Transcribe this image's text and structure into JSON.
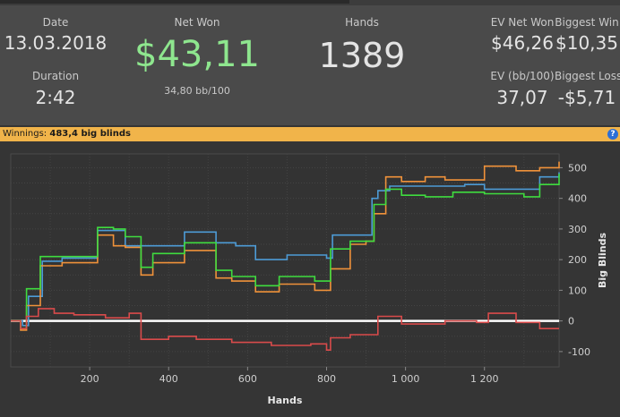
{
  "stats": {
    "date_label": "Date",
    "date_value": "13.03.2018",
    "duration_label": "Duration",
    "duration_value": "2:42",
    "net_won_label": "Net Won",
    "net_won_value": "$43,11",
    "net_won_sub": "34,80 bb/100",
    "hands_label": "Hands",
    "hands_value": "1389",
    "ev_net_won_label": "EV Net Won",
    "ev_net_won_value": "$46,26",
    "biggest_win_label": "Biggest Win",
    "biggest_win_value": "$10,35",
    "ev_bb_label": "EV (bb/100)",
    "ev_bb_value": "37,07",
    "biggest_loss_label": "Biggest Loss",
    "biggest_loss_value": "-$5,71"
  },
  "winnings": {
    "label": "Winnings:",
    "value": "483,4 big blinds",
    "help_icon": "?"
  },
  "colors": {
    "net_won": "#8ee68e",
    "winbar": "#f1b44a",
    "green": "#3fdc3f",
    "orange": "#f0923a",
    "blue": "#4d9bd6",
    "red": "#d94b4b"
  },
  "chart_data": {
    "type": "line",
    "xlabel": "Hands",
    "ylabel": "Big Blinds",
    "x_ticks": [
      200,
      400,
      600,
      800,
      1000,
      1200
    ],
    "x_tick_labels": [
      "200",
      "400",
      "600",
      "800",
      "1 000",
      "1 200"
    ],
    "y_ticks": [
      -100,
      0,
      100,
      200,
      300,
      400,
      500
    ],
    "y_tick_labels": [
      "-100",
      "0",
      "100",
      "200",
      "300",
      "400",
      "500"
    ],
    "xlim": [
      0,
      1389
    ],
    "ylim": [
      -150,
      545
    ],
    "grid": true,
    "series": [
      {
        "color": "#4d9bd6",
        "points": [
          [
            0,
            0
          ],
          [
            30,
            -15
          ],
          [
            45,
            80
          ],
          [
            80,
            195
          ],
          [
            130,
            205
          ],
          [
            220,
            295
          ],
          [
            290,
            245
          ],
          [
            360,
            245
          ],
          [
            440,
            290
          ],
          [
            520,
            255
          ],
          [
            570,
            245
          ],
          [
            620,
            200
          ],
          [
            700,
            215
          ],
          [
            800,
            205
          ],
          [
            815,
            280
          ],
          [
            870,
            280
          ],
          [
            915,
            400
          ],
          [
            930,
            425
          ],
          [
            960,
            440
          ],
          [
            1050,
            440
          ],
          [
            1150,
            445
          ],
          [
            1200,
            430
          ],
          [
            1300,
            430
          ],
          [
            1340,
            470
          ],
          [
            1389,
            485
          ]
        ]
      },
      {
        "color": "#f0923a",
        "points": [
          [
            0,
            0
          ],
          [
            25,
            -30
          ],
          [
            40,
            50
          ],
          [
            75,
            180
          ],
          [
            130,
            190
          ],
          [
            220,
            280
          ],
          [
            260,
            245
          ],
          [
            290,
            240
          ],
          [
            330,
            150
          ],
          [
            360,
            190
          ],
          [
            440,
            230
          ],
          [
            520,
            140
          ],
          [
            560,
            130
          ],
          [
            620,
            95
          ],
          [
            680,
            120
          ],
          [
            770,
            100
          ],
          [
            810,
            170
          ],
          [
            860,
            250
          ],
          [
            900,
            260
          ],
          [
            920,
            350
          ],
          [
            950,
            470
          ],
          [
            990,
            455
          ],
          [
            1050,
            470
          ],
          [
            1100,
            460
          ],
          [
            1200,
            505
          ],
          [
            1280,
            490
          ],
          [
            1340,
            500
          ],
          [
            1389,
            520
          ]
        ]
      },
      {
        "color": "#3fdc3f",
        "points": [
          [
            0,
            0
          ],
          [
            25,
            -25
          ],
          [
            40,
            105
          ],
          [
            75,
            210
          ],
          [
            130,
            210
          ],
          [
            220,
            305
          ],
          [
            260,
            300
          ],
          [
            290,
            275
          ],
          [
            330,
            175
          ],
          [
            360,
            220
          ],
          [
            440,
            255
          ],
          [
            520,
            165
          ],
          [
            560,
            145
          ],
          [
            620,
            115
          ],
          [
            680,
            145
          ],
          [
            770,
            130
          ],
          [
            810,
            235
          ],
          [
            860,
            260
          ],
          [
            900,
            260
          ],
          [
            920,
            380
          ],
          [
            950,
            430
          ],
          [
            990,
            410
          ],
          [
            1050,
            405
          ],
          [
            1120,
            420
          ],
          [
            1200,
            415
          ],
          [
            1300,
            405
          ],
          [
            1340,
            445
          ],
          [
            1389,
            480
          ]
        ]
      },
      {
        "color": "#d94b4b",
        "points": [
          [
            0,
            0
          ],
          [
            25,
            -25
          ],
          [
            40,
            15
          ],
          [
            70,
            40
          ],
          [
            110,
            25
          ],
          [
            160,
            20
          ],
          [
            240,
            10
          ],
          [
            300,
            25
          ],
          [
            330,
            -60
          ],
          [
            400,
            -50
          ],
          [
            470,
            -60
          ],
          [
            560,
            -70
          ],
          [
            660,
            -80
          ],
          [
            760,
            -75
          ],
          [
            800,
            -95
          ],
          [
            810,
            -55
          ],
          [
            860,
            -45
          ],
          [
            930,
            15
          ],
          [
            990,
            -10
          ],
          [
            1060,
            -10
          ],
          [
            1100,
            0
          ],
          [
            1180,
            -5
          ],
          [
            1210,
            25
          ],
          [
            1280,
            -5
          ],
          [
            1340,
            -25
          ],
          [
            1389,
            -25
          ]
        ]
      }
    ]
  }
}
